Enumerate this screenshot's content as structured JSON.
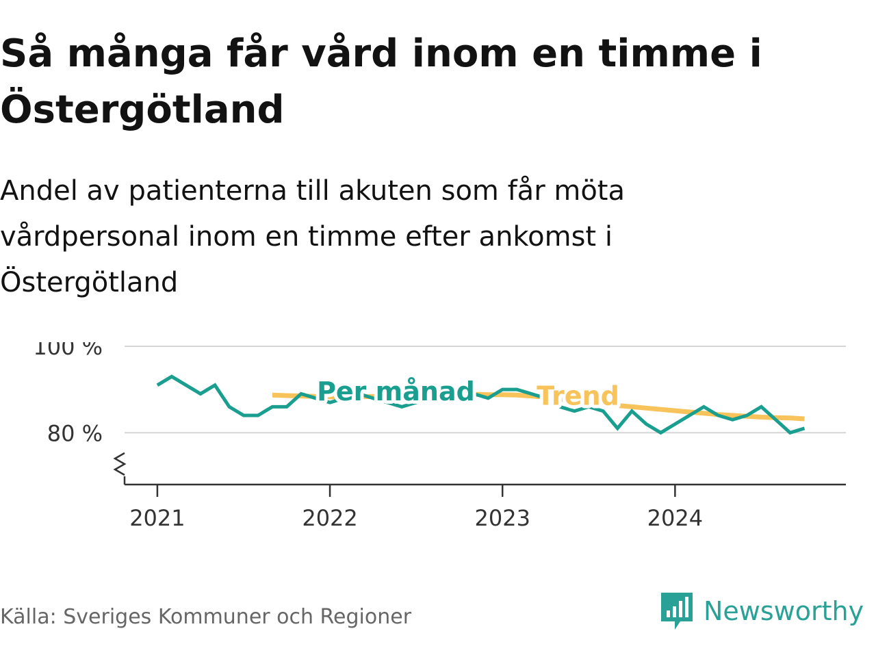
{
  "title": "Så många får vård inom en timme i Östergötland",
  "subtitle": "Andel av patienterna till akuten som får möta vårdpersonal inom en timme efter ankomst i Östergötland",
  "source": "Källa: Sveriges Kommuner och Regioner",
  "brand": {
    "name": "Newsworthy",
    "icon": "newsworthy-logo-icon",
    "color": "#2aa197"
  },
  "chart_data": {
    "type": "line",
    "y_ticks": [
      {
        "value": 100,
        "label": "100 %"
      },
      {
        "value": 80,
        "label": "80 %"
      }
    ],
    "x_ticks": [
      {
        "value": 2021,
        "label": "2021"
      },
      {
        "value": 2022,
        "label": "2022"
      },
      {
        "value": 2023,
        "label": "2023"
      },
      {
        "value": 2024,
        "label": "2024"
      }
    ],
    "ylim": [
      68,
      100
    ],
    "xlim": [
      2020.81,
      2024.99
    ],
    "axis_break": true,
    "grid": true,
    "series": [
      {
        "name": "Per månad",
        "color": "#1a9e8f",
        "x": [
          "2021-01",
          "2021-02",
          "2021-03",
          "2021-04",
          "2021-05",
          "2021-06",
          "2021-07",
          "2021-08",
          "2021-09",
          "2021-10",
          "2021-11",
          "2021-12",
          "2022-01",
          "2022-02",
          "2022-03",
          "2022-04",
          "2022-05",
          "2022-06",
          "2022-07",
          "2022-08",
          "2022-09",
          "2022-10",
          "2022-11",
          "2022-12",
          "2023-01",
          "2023-02",
          "2023-03",
          "2023-04",
          "2023-05",
          "2023-06",
          "2023-07",
          "2023-08",
          "2023-09",
          "2023-10",
          "2023-11",
          "2023-12",
          "2024-01",
          "2024-02",
          "2024-03",
          "2024-04",
          "2024-05",
          "2024-06",
          "2024-07",
          "2024-08",
          "2024-09",
          "2024-10"
        ],
        "y": [
          91,
          93,
          91,
          89,
          91,
          86,
          84,
          84,
          86,
          86,
          89,
          88,
          87,
          88,
          89,
          88,
          87,
          86,
          87,
          88,
          89,
          89,
          89,
          88,
          90,
          90,
          89,
          88,
          86,
          85,
          86,
          85,
          81,
          85,
          82,
          80,
          82,
          84,
          86,
          84,
          83,
          84,
          86,
          83,
          80,
          81
        ]
      },
      {
        "name": "Trend",
        "color": "#f8c35a",
        "x": [
          "2021-09",
          "2021-10",
          "2021-11",
          "2021-12",
          "2022-01",
          "2022-02",
          "2022-03",
          "2022-04",
          "2022-05",
          "2022-06",
          "2022-07",
          "2022-08",
          "2022-09",
          "2022-10",
          "2022-11",
          "2022-12",
          "2023-01",
          "2023-02",
          "2023-03",
          "2023-04",
          "2023-05",
          "2023-06",
          "2023-07",
          "2023-08",
          "2023-09",
          "2023-10",
          "2023-11",
          "2023-12",
          "2024-01",
          "2024-02",
          "2024-03",
          "2024-04",
          "2024-05",
          "2024-06",
          "2024-07",
          "2024-08",
          "2024-09",
          "2024-10"
        ],
        "y": [
          88.7,
          88.6,
          88.5,
          88.4,
          88.3,
          88.3,
          88.3,
          88.4,
          88.5,
          88.6,
          88.7,
          88.8,
          88.9,
          88.9,
          88.9,
          88.8,
          88.8,
          88.7,
          88.5,
          88.2,
          87.8,
          87.4,
          87.0,
          86.6,
          86.3,
          86.0,
          85.7,
          85.4,
          85.1,
          84.8,
          84.5,
          84.2,
          84.0,
          83.8,
          83.6,
          83.5,
          83.4,
          83.2
        ]
      }
    ],
    "labels": [
      {
        "text": "Per månad",
        "series": 0,
        "x": "2022-02",
        "y": 90
      },
      {
        "text": "Trend",
        "series": 1,
        "x": "2023-06",
        "y": 89
      }
    ]
  }
}
